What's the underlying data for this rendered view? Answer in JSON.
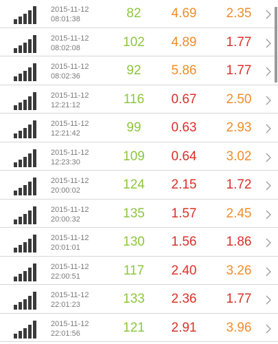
{
  "colors": {
    "green": "#8cc63e",
    "orange": "#f08c2a",
    "red": "#d9302a",
    "gray_text": "#7a7a7a"
  },
  "icons": {
    "row_left": "signal-strength-icon",
    "row_right": "chevron-right-icon"
  },
  "rows": [
    {
      "date": "2015-11-12",
      "time": "08:01:38",
      "ping": "82",
      "down": "4.69",
      "up": "2.35",
      "down_color": "orange",
      "up_color": "orange"
    },
    {
      "date": "2015-11-12",
      "time": "08:02:08",
      "ping": "102",
      "down": "4.89",
      "up": "1.77",
      "down_color": "orange",
      "up_color": "red"
    },
    {
      "date": "2015-11-12",
      "time": "08:02:36",
      "ping": "92",
      "down": "5.86",
      "up": "1.77",
      "down_color": "orange",
      "up_color": "red"
    },
    {
      "date": "2015-11-12",
      "time": "12:21:12",
      "ping": "116",
      "down": "0.67",
      "up": "2.50",
      "down_color": "red",
      "up_color": "orange"
    },
    {
      "date": "2015-11-12",
      "time": "12:21:42",
      "ping": "99",
      "down": "0.63",
      "up": "2.93",
      "down_color": "red",
      "up_color": "orange"
    },
    {
      "date": "2015-11-12",
      "time": "12:23:30",
      "ping": "109",
      "down": "0.64",
      "up": "3.02",
      "down_color": "red",
      "up_color": "orange"
    },
    {
      "date": "2015-11-12",
      "time": "20:00:02",
      "ping": "124",
      "down": "2.15",
      "up": "1.72",
      "down_color": "red",
      "up_color": "red"
    },
    {
      "date": "2015-11-12",
      "time": "20:00:32",
      "ping": "135",
      "down": "1.57",
      "up": "2.45",
      "down_color": "red",
      "up_color": "orange"
    },
    {
      "date": "2015-11-12",
      "time": "20:01:01",
      "ping": "130",
      "down": "1.56",
      "up": "1.86",
      "down_color": "red",
      "up_color": "red"
    },
    {
      "date": "2015-11-12",
      "time": "22:00:51",
      "ping": "117",
      "down": "2.40",
      "up": "3.26",
      "down_color": "red",
      "up_color": "orange"
    },
    {
      "date": "2015-11-12",
      "time": "22:01:23",
      "ping": "133",
      "down": "2.36",
      "up": "1.77",
      "down_color": "red",
      "up_color": "red"
    },
    {
      "date": "2015-11-12",
      "time": "22:01:56",
      "ping": "121",
      "down": "2.91",
      "up": "3.96",
      "down_color": "red",
      "up_color": "orange"
    }
  ]
}
